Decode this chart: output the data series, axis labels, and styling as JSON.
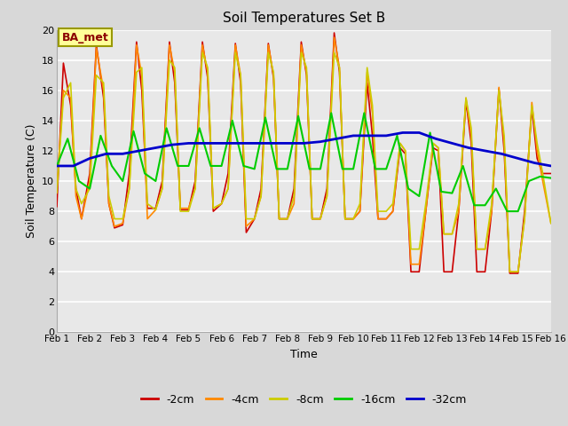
{
  "title": "Soil Temperatures Set B",
  "xlabel": "Time",
  "ylabel": "Soil Temperature (C)",
  "ylim": [
    0,
    20
  ],
  "xlim": [
    0,
    15
  ],
  "xtick_labels": [
    "Feb 1",
    "Feb 2",
    "Feb 3",
    "Feb 4",
    "Feb 5",
    "Feb 6",
    "Feb 7",
    "Feb 8",
    "Feb 9",
    "Feb 10",
    "Feb 11",
    "Feb 12",
    "Feb 13",
    "Feb 14",
    "Feb 15",
    "Feb 16"
  ],
  "ytick_vals": [
    0,
    2,
    4,
    6,
    8,
    10,
    12,
    14,
    16,
    18,
    20
  ],
  "annotation": "BA_met",
  "outer_bg": "#d8d8d8",
  "plot_bg": "#e8e8e8",
  "grid_color": "#ffffff",
  "series": {
    "-2cm": {
      "color": "#cc0000",
      "lw": 1.2,
      "x": [
        0,
        0.2,
        0.42,
        0.58,
        0.75,
        1.0,
        1.2,
        1.42,
        1.58,
        1.75,
        2.0,
        2.2,
        2.42,
        2.58,
        2.75,
        3.0,
        3.2,
        3.42,
        3.58,
        3.75,
        4.0,
        4.2,
        4.42,
        4.58,
        4.75,
        5.0,
        5.2,
        5.42,
        5.58,
        5.75,
        6.0,
        6.2,
        6.42,
        6.58,
        6.75,
        7.0,
        7.2,
        7.42,
        7.58,
        7.75,
        8.0,
        8.2,
        8.42,
        8.58,
        8.75,
        9.0,
        9.2,
        9.42,
        9.58,
        9.75,
        10.0,
        10.2,
        10.42,
        10.58,
        10.75,
        11.0,
        11.2,
        11.42,
        11.58,
        11.75,
        12.0,
        12.2,
        12.42,
        12.58,
        12.75,
        13.0,
        13.2,
        13.42,
        13.58,
        13.75,
        14.0,
        14.2,
        14.42,
        14.58,
        14.75,
        15.0
      ],
      "y": [
        8.3,
        17.8,
        15.0,
        9.5,
        7.5,
        10.5,
        19.0,
        15.5,
        8.5,
        6.9,
        7.1,
        10.5,
        19.2,
        16.0,
        8.2,
        8.2,
        10.0,
        19.2,
        16.5,
        8.1,
        8.1,
        10.0,
        19.2,
        16.8,
        8.0,
        8.5,
        10.5,
        19.1,
        16.5,
        6.6,
        7.5,
        9.5,
        19.1,
        16.8,
        7.5,
        7.5,
        9.5,
        19.2,
        17.0,
        7.5,
        7.5,
        9.5,
        19.8,
        17.2,
        7.5,
        7.5,
        8.0,
        16.5,
        13.0,
        7.5,
        7.5,
        8.0,
        12.2,
        11.8,
        4.0,
        4.0,
        8.0,
        12.2,
        12.0,
        4.0,
        4.0,
        8.0,
        15.3,
        12.5,
        4.0,
        4.0,
        8.0,
        16.1,
        12.0,
        3.9,
        3.9,
        8.0,
        14.8,
        11.5,
        10.5,
        10.5
      ]
    },
    "-4cm": {
      "color": "#ff8800",
      "lw": 1.2,
      "x": [
        0,
        0.2,
        0.42,
        0.58,
        0.75,
        1.0,
        1.2,
        1.42,
        1.58,
        1.75,
        2.0,
        2.2,
        2.42,
        2.58,
        2.75,
        3.0,
        3.2,
        3.42,
        3.58,
        3.75,
        4.0,
        4.2,
        4.42,
        4.58,
        4.75,
        5.0,
        5.2,
        5.42,
        5.58,
        5.75,
        6.0,
        6.2,
        6.42,
        6.58,
        6.75,
        7.0,
        7.2,
        7.42,
        7.58,
        7.75,
        8.0,
        8.2,
        8.42,
        8.58,
        8.75,
        9.0,
        9.2,
        9.42,
        9.58,
        9.75,
        10.0,
        10.2,
        10.42,
        10.58,
        10.75,
        11.0,
        11.2,
        11.42,
        11.58,
        11.75,
        12.0,
        12.2,
        12.42,
        12.58,
        12.75,
        13.0,
        13.2,
        13.42,
        13.58,
        13.75,
        14.0,
        14.2,
        14.42,
        14.58,
        14.75,
        15.0
      ],
      "y": [
        9.4,
        16.0,
        15.5,
        9.0,
        7.5,
        10.0,
        18.8,
        16.0,
        8.5,
        7.0,
        7.2,
        9.5,
        19.0,
        17.0,
        7.5,
        8.1,
        9.5,
        19.0,
        17.2,
        8.2,
        8.2,
        9.5,
        19.0,
        17.2,
        8.2,
        8.5,
        9.5,
        19.0,
        17.0,
        7.0,
        7.5,
        9.0,
        19.0,
        17.0,
        7.5,
        7.5,
        8.5,
        19.0,
        17.2,
        7.5,
        7.5,
        9.0,
        19.5,
        17.5,
        7.5,
        7.5,
        8.0,
        17.2,
        14.5,
        7.5,
        7.5,
        8.0,
        12.5,
        12.0,
        4.5,
        4.5,
        8.0,
        12.5,
        12.2,
        6.5,
        6.5,
        8.0,
        15.5,
        13.0,
        5.5,
        5.5,
        8.0,
        16.2,
        12.5,
        4.0,
        4.0,
        7.5,
        15.2,
        12.0,
        10.0,
        7.2
      ]
    },
    "-8cm": {
      "color": "#cccc00",
      "lw": 1.2,
      "x": [
        0,
        0.2,
        0.42,
        0.58,
        0.75,
        1.0,
        1.2,
        1.42,
        1.58,
        1.75,
        2.0,
        2.2,
        2.42,
        2.58,
        2.75,
        3.0,
        3.2,
        3.42,
        3.58,
        3.75,
        4.0,
        4.2,
        4.42,
        4.58,
        4.75,
        5.0,
        5.2,
        5.42,
        5.58,
        5.75,
        6.0,
        6.2,
        6.42,
        6.58,
        6.75,
        7.0,
        7.2,
        7.42,
        7.58,
        7.75,
        8.0,
        8.2,
        8.42,
        8.58,
        8.75,
        9.0,
        9.2,
        9.42,
        9.58,
        9.75,
        10.0,
        10.2,
        10.42,
        10.58,
        10.75,
        11.0,
        11.2,
        11.42,
        11.58,
        11.75,
        12.0,
        12.2,
        12.42,
        12.58,
        12.75,
        13.0,
        13.2,
        13.42,
        13.58,
        13.75,
        14.0,
        14.2,
        14.42,
        14.58,
        14.75,
        15.0
      ],
      "y": [
        9.2,
        15.5,
        16.5,
        9.5,
        8.5,
        9.5,
        17.0,
        16.5,
        9.0,
        7.5,
        7.5,
        9.5,
        17.2,
        17.5,
        8.5,
        8.1,
        9.5,
        18.0,
        17.5,
        8.0,
        8.0,
        9.5,
        18.5,
        17.5,
        8.2,
        8.5,
        9.5,
        18.5,
        17.0,
        7.5,
        7.5,
        9.0,
        18.5,
        17.2,
        7.5,
        7.5,
        9.0,
        18.5,
        17.5,
        7.5,
        7.5,
        9.0,
        18.5,
        17.5,
        7.5,
        7.5,
        8.5,
        17.5,
        15.0,
        8.0,
        8.0,
        8.5,
        12.5,
        12.0,
        5.5,
        5.5,
        8.5,
        12.5,
        12.2,
        6.5,
        6.5,
        8.5,
        15.5,
        13.5,
        5.5,
        5.5,
        8.5,
        16.0,
        13.0,
        4.0,
        4.0,
        7.5,
        15.0,
        12.5,
        10.5,
        7.2
      ]
    },
    "-16cm": {
      "color": "#00cc00",
      "lw": 1.5,
      "x": [
        0,
        0.33,
        0.67,
        1.0,
        1.33,
        1.67,
        2.0,
        2.33,
        2.67,
        3.0,
        3.33,
        3.67,
        4.0,
        4.33,
        4.67,
        5.0,
        5.33,
        5.67,
        6.0,
        6.33,
        6.67,
        7.0,
        7.33,
        7.67,
        8.0,
        8.33,
        8.67,
        9.0,
        9.33,
        9.67,
        10.0,
        10.33,
        10.67,
        11.0,
        11.33,
        11.67,
        12.0,
        12.33,
        12.67,
        13.0,
        13.33,
        13.67,
        14.0,
        14.33,
        14.67,
        15.0
      ],
      "y": [
        11.0,
        12.8,
        10.0,
        9.5,
        13.0,
        11.0,
        10.0,
        13.3,
        10.5,
        10.0,
        13.5,
        11.0,
        11.0,
        13.5,
        11.0,
        11.0,
        14.0,
        11.0,
        10.8,
        14.2,
        10.8,
        10.8,
        14.3,
        10.8,
        10.8,
        14.5,
        10.8,
        10.8,
        14.5,
        10.8,
        10.8,
        13.0,
        9.5,
        9.0,
        13.2,
        9.3,
        9.2,
        11.0,
        8.4,
        8.4,
        9.5,
        8.0,
        8.0,
        10.0,
        10.3,
        10.2
      ]
    },
    "-32cm": {
      "color": "#0000cc",
      "lw": 2.0,
      "x": [
        0,
        0.5,
        1.0,
        1.5,
        2.0,
        2.5,
        3.0,
        3.5,
        4.0,
        4.5,
        5.0,
        5.5,
        6.0,
        6.5,
        7.0,
        7.5,
        8.0,
        8.5,
        9.0,
        9.5,
        10.0,
        10.5,
        11.0,
        11.5,
        12.0,
        12.5,
        13.0,
        13.5,
        14.0,
        14.5,
        15.0
      ],
      "y": [
        11.0,
        11.0,
        11.5,
        11.8,
        11.8,
        12.0,
        12.2,
        12.4,
        12.5,
        12.5,
        12.5,
        12.5,
        12.5,
        12.5,
        12.5,
        12.5,
        12.6,
        12.8,
        13.0,
        13.0,
        13.0,
        13.2,
        13.2,
        12.8,
        12.5,
        12.2,
        12.0,
        11.8,
        11.5,
        11.2,
        11.0
      ]
    }
  },
  "legend_order": [
    "-2cm",
    "-4cm",
    "-8cm",
    "-16cm",
    "-32cm"
  ],
  "legend_colors": [
    "#cc0000",
    "#ff8800",
    "#cccc00",
    "#00cc00",
    "#0000cc"
  ]
}
